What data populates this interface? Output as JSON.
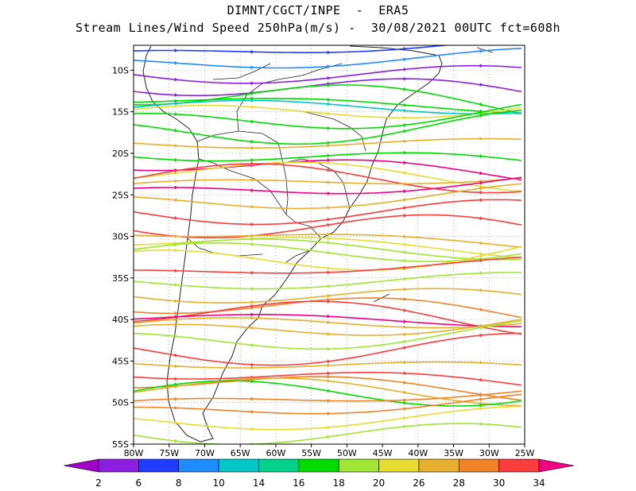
{
  "header": {
    "title_line1": "DIMNT/CGCT/INPE  -  ERA5",
    "title_line2": "Stream Lines/Wind Speed 250hPa(m/s) -  30/08/2021 00UTC fct=608h"
  },
  "map": {
    "lon_range": [
      -80,
      -25
    ],
    "lat_range": [
      -55,
      -7
    ],
    "lat_labels": [
      "10S",
      "15S",
      "20S",
      "25S",
      "30S",
      "35S",
      "40S",
      "45S",
      "50S",
      "55S"
    ],
    "lon_labels": [
      "80W",
      "75W",
      "70W",
      "65W",
      "60W",
      "55W",
      "50W",
      "45W",
      "40W",
      "35W",
      "30W",
      "25W"
    ],
    "gridline_style": "dotted"
  },
  "colorbar": {
    "labels": [
      "2",
      "6",
      "8",
      "10",
      "14",
      "16",
      "18",
      "20",
      "26",
      "28",
      "30",
      "34"
    ],
    "colors": [
      "#a000c8",
      "#8c1ee0",
      "#1e3cff",
      "#1e8cff",
      "#00c8c8",
      "#00d28c",
      "#00dc00",
      "#a0e632",
      "#e6dc32",
      "#e6af2d",
      "#f08228",
      "#fa3c3c",
      "#f00082"
    ]
  }
}
